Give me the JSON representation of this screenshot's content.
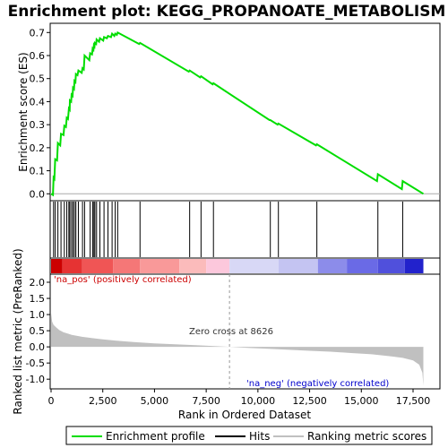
{
  "chart_data": {
    "type": "line",
    "title": "Enrichment plot: KEGG_PROPANOATE_METABOLISM",
    "xlabel": "Rank in Ordered Dataset",
    "ylabel_top": "Enrichment score (ES)",
    "ylabel_bottom": "Ranked list metric (PreRanked)",
    "x_ticks": [
      0,
      2500,
      5000,
      7500,
      10000,
      12500,
      15000,
      17500
    ],
    "x_tick_labels": [
      "0",
      "2,500",
      "5,000",
      "7,500",
      "10,000",
      "12,500",
      "15,000",
      "17,500"
    ],
    "xlim": [
      0,
      18800
    ],
    "es_ylim": [
      -0.03,
      0.74
    ],
    "es_y_ticks": [
      0.0,
      0.1,
      0.2,
      0.3,
      0.4,
      0.5,
      0.6,
      0.7
    ],
    "es_y_tick_labels": [
      "0.0",
      "0.1",
      "0.2",
      "0.3",
      "0.4",
      "0.5",
      "0.6",
      "0.7"
    ],
    "metric_ylim": [
      -1.3,
      2.25
    ],
    "metric_y_ticks": [
      2.0,
      1.5,
      1.0,
      0.5,
      0.0,
      -0.5,
      -1.0
    ],
    "metric_y_tick_labels": [
      "2.0",
      "1.5",
      "1.0",
      "0.5",
      "0.0",
      "-0.5",
      "-1.0"
    ],
    "n_genes": 18000,
    "zero_cross": 8626,
    "annotations": {
      "pos": "'na_pos' (positively correlated)",
      "neg": "'na_neg' (negatively correlated)",
      "zero": "Zero cross at 8626"
    },
    "legend": {
      "items": [
        "Enrichment profile",
        "Hits",
        "Ranking metric scores"
      ]
    },
    "colors": {
      "es_line": "#00dd00",
      "hit": "#000000",
      "metric_fill": "#c0c0c0",
      "zero_line": "#999999"
    },
    "hits": [
      120,
      200,
      330,
      480,
      640,
      760,
      860,
      910,
      990,
      1060,
      1130,
      1200,
      1320,
      1520,
      1620,
      1890,
      2010,
      2070,
      2120,
      2200,
      2360,
      2560,
      2750,
      2950,
      3100,
      3220,
      4300,
      6700,
      7250,
      7850,
      10600,
      10990,
      12850,
      15800,
      17000
    ],
    "es_points": [
      [
        0,
        0.0
      ],
      [
        90,
        -0.005
      ],
      [
        120,
        0.07
      ],
      [
        160,
        0.065
      ],
      [
        200,
        0.15
      ],
      [
        290,
        0.145
      ],
      [
        330,
        0.22
      ],
      [
        440,
        0.21
      ],
      [
        480,
        0.26
      ],
      [
        600,
        0.255
      ],
      [
        640,
        0.295
      ],
      [
        720,
        0.29
      ],
      [
        760,
        0.33
      ],
      [
        820,
        0.325
      ],
      [
        860,
        0.37
      ],
      [
        900,
        0.365
      ],
      [
        910,
        0.405
      ],
      [
        970,
        0.4
      ],
      [
        990,
        0.43
      ],
      [
        1040,
        0.425
      ],
      [
        1060,
        0.46
      ],
      [
        1110,
        0.455
      ],
      [
        1130,
        0.49
      ],
      [
        1180,
        0.485
      ],
      [
        1200,
        0.52
      ],
      [
        1280,
        0.515
      ],
      [
        1320,
        0.535
      ],
      [
        1480,
        0.525
      ],
      [
        1520,
        0.545
      ],
      [
        1580,
        0.54
      ],
      [
        1620,
        0.6
      ],
      [
        1850,
        0.58
      ],
      [
        1890,
        0.61
      ],
      [
        1980,
        0.605
      ],
      [
        2010,
        0.63
      ],
      [
        2050,
        0.625
      ],
      [
        2070,
        0.645
      ],
      [
        2100,
        0.64
      ],
      [
        2120,
        0.655
      ],
      [
        2180,
        0.65
      ],
      [
        2200,
        0.67
      ],
      [
        2320,
        0.66
      ],
      [
        2360,
        0.675
      ],
      [
        2520,
        0.665
      ],
      [
        2560,
        0.68
      ],
      [
        2700,
        0.675
      ],
      [
        2750,
        0.685
      ],
      [
        2900,
        0.68
      ],
      [
        2950,
        0.695
      ],
      [
        3060,
        0.685
      ],
      [
        3100,
        0.695
      ],
      [
        3180,
        0.69
      ],
      [
        3220,
        0.7
      ],
      [
        4260,
        0.65
      ],
      [
        4300,
        0.655
      ],
      [
        6660,
        0.53
      ],
      [
        6700,
        0.535
      ],
      [
        7210,
        0.505
      ],
      [
        7250,
        0.51
      ],
      [
        7810,
        0.475
      ],
      [
        7850,
        0.48
      ],
      [
        10560,
        0.32
      ],
      [
        10600,
        0.32
      ],
      [
        10950,
        0.3
      ],
      [
        10990,
        0.305
      ],
      [
        12810,
        0.21
      ],
      [
        12850,
        0.215
      ],
      [
        15760,
        0.055
      ],
      [
        15800,
        0.085
      ],
      [
        16960,
        0.02
      ],
      [
        17000,
        0.055
      ],
      [
        18000,
        0.0
      ]
    ],
    "metric_curve": [
      [
        0,
        1.05
      ],
      [
        50,
        0.78
      ],
      [
        120,
        0.68
      ],
      [
        250,
        0.6
      ],
      [
        400,
        0.52
      ],
      [
        600,
        0.45
      ],
      [
        800,
        0.41
      ],
      [
        1000,
        0.37
      ],
      [
        1500,
        0.31
      ],
      [
        2000,
        0.27
      ],
      [
        2500,
        0.23
      ],
      [
        3000,
        0.2
      ],
      [
        4000,
        0.15
      ],
      [
        5000,
        0.11
      ],
      [
        6000,
        0.08
      ],
      [
        7000,
        0.05
      ],
      [
        8000,
        0.02
      ],
      [
        8626,
        0.0
      ],
      [
        9500,
        -0.03
      ],
      [
        10500,
        -0.06
      ],
      [
        11500,
        -0.09
      ],
      [
        12500,
        -0.12
      ],
      [
        13500,
        -0.15
      ],
      [
        14500,
        -0.19
      ],
      [
        15500,
        -0.23
      ],
      [
        16500,
        -0.3
      ],
      [
        17000,
        -0.34
      ],
      [
        17500,
        -0.42
      ],
      [
        17800,
        -0.55
      ],
      [
        17950,
        -0.8
      ],
      [
        18000,
        -1.2
      ]
    ],
    "heat_segments": [
      {
        "x0": 0,
        "x1": 550,
        "color": "#cc0000"
      },
      {
        "x0": 550,
        "x1": 1500,
        "color": "#e63333"
      },
      {
        "x0": 1500,
        "x1": 3000,
        "color": "#f05555"
      },
      {
        "x0": 3000,
        "x1": 4300,
        "color": "#f57777"
      },
      {
        "x0": 4300,
        "x1": 6200,
        "color": "#f99999"
      },
      {
        "x0": 6200,
        "x1": 7500,
        "color": "#fbbbbb"
      },
      {
        "x0": 7500,
        "x1": 8626,
        "color": "#fcc8dc"
      },
      {
        "x0": 8626,
        "x1": 11000,
        "color": "#d8d8f6"
      },
      {
        "x0": 11000,
        "x1": 12900,
        "color": "#c4c4f2"
      },
      {
        "x0": 12900,
        "x1": 14300,
        "color": "#8c8cea"
      },
      {
        "x0": 14300,
        "x1": 15800,
        "color": "#6a6ae6"
      },
      {
        "x0": 15800,
        "x1": 17100,
        "color": "#5050dc"
      },
      {
        "x0": 17100,
        "x1": 18000,
        "color": "#2222cc"
      }
    ]
  }
}
